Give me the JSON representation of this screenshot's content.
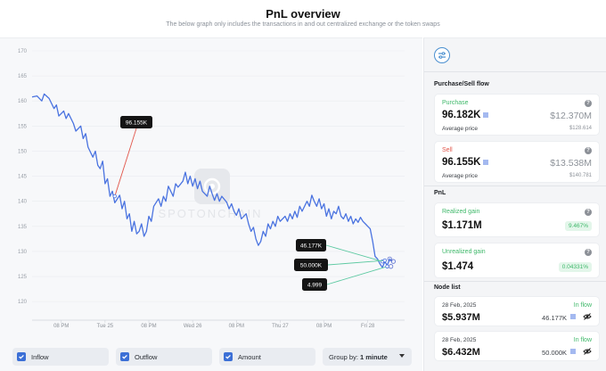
{
  "header": {
    "title": "PnL overview",
    "subtitle": "The below graph only includes the transactions in and out centralized exchange or the token swaps"
  },
  "watermark": "SPOTONCHAIN",
  "chart_data": {
    "type": "line",
    "title": "",
    "xlabel": "",
    "ylabel": "",
    "ylim": [
      117,
      170
    ],
    "yticks": [
      120,
      125,
      130,
      135,
      140,
      145,
      150,
      155,
      160,
      165,
      170
    ],
    "xticks": [
      {
        "t": 0.12,
        "label": "08 PM"
      },
      {
        "t": 0.3,
        "label": "Tue 25"
      },
      {
        "t": 0.48,
        "label": "08 PM"
      },
      {
        "t": 0.66,
        "label": "Wed 26"
      },
      {
        "t": 0.84,
        "label": "08 PM"
      },
      {
        "t": 1.02,
        "label": "Thu 27"
      },
      {
        "t": 1.2,
        "label": "08 PM"
      },
      {
        "t": 1.38,
        "label": "Fri 28"
      }
    ],
    "series": [
      {
        "values": [
          [
            0.0,
            160.8
          ],
          [
            0.02,
            161.0
          ],
          [
            0.04,
            160.0
          ],
          [
            0.05,
            161.4
          ],
          [
            0.07,
            160.5
          ],
          [
            0.09,
            158.5
          ],
          [
            0.1,
            159.2
          ],
          [
            0.11,
            157.0
          ],
          [
            0.13,
            158.0
          ],
          [
            0.14,
            156.5
          ],
          [
            0.15,
            157.5
          ],
          [
            0.17,
            155.5
          ],
          [
            0.18,
            154.0
          ],
          [
            0.2,
            155.0
          ],
          [
            0.21,
            152.5
          ],
          [
            0.22,
            153.5
          ],
          [
            0.23,
            150.8
          ],
          [
            0.25,
            148.8
          ],
          [
            0.26,
            150.0
          ],
          [
            0.27,
            147.2
          ],
          [
            0.28,
            146.5
          ],
          [
            0.29,
            148.0
          ],
          [
            0.3,
            143.5
          ],
          [
            0.31,
            144.5
          ],
          [
            0.32,
            141.0
          ],
          [
            0.33,
            142.0
          ],
          [
            0.34,
            139.7
          ],
          [
            0.36,
            141.2
          ],
          [
            0.37,
            138.5
          ],
          [
            0.38,
            140.0
          ],
          [
            0.39,
            136.5
          ],
          [
            0.4,
            137.5
          ],
          [
            0.41,
            134.0
          ],
          [
            0.42,
            136.0
          ],
          [
            0.43,
            133.5
          ],
          [
            0.44,
            134.0
          ],
          [
            0.45,
            135.5
          ],
          [
            0.46,
            133.0
          ],
          [
            0.47,
            134.0
          ],
          [
            0.48,
            137.0
          ],
          [
            0.49,
            136.0
          ],
          [
            0.5,
            139.0
          ],
          [
            0.52,
            140.5
          ],
          [
            0.53,
            139.0
          ],
          [
            0.54,
            141.0
          ],
          [
            0.55,
            140.0
          ],
          [
            0.56,
            143.0
          ],
          [
            0.57,
            142.0
          ],
          [
            0.58,
            141.0
          ],
          [
            0.59,
            143.5
          ],
          [
            0.6,
            142.8
          ],
          [
            0.62,
            144.0
          ],
          [
            0.63,
            145.8
          ],
          [
            0.64,
            143.5
          ],
          [
            0.65,
            145.0
          ],
          [
            0.66,
            143.0
          ],
          [
            0.67,
            144.5
          ],
          [
            0.68,
            142.5
          ],
          [
            0.69,
            144.0
          ],
          [
            0.7,
            142.0
          ],
          [
            0.72,
            141.0
          ],
          [
            0.73,
            143.0
          ],
          [
            0.74,
            141.5
          ],
          [
            0.75,
            140.2
          ],
          [
            0.76,
            141.5
          ],
          [
            0.77,
            140.0
          ],
          [
            0.78,
            141.0
          ],
          [
            0.8,
            139.8
          ],
          [
            0.81,
            138.5
          ],
          [
            0.82,
            139.5
          ],
          [
            0.83,
            138.0
          ],
          [
            0.84,
            137.2
          ],
          [
            0.85,
            138.5
          ],
          [
            0.86,
            136.5
          ],
          [
            0.88,
            137.5
          ],
          [
            0.89,
            135.5
          ],
          [
            0.9,
            134.0
          ],
          [
            0.91,
            134.8
          ],
          [
            0.92,
            132.5
          ],
          [
            0.93,
            131.2
          ],
          [
            0.94,
            132.0
          ],
          [
            0.95,
            134.0
          ],
          [
            0.96,
            133.0
          ],
          [
            0.97,
            135.5
          ],
          [
            0.98,
            134.5
          ],
          [
            0.99,
            136.0
          ],
          [
            1.0,
            135.0
          ],
          [
            1.01,
            137.0
          ],
          [
            1.02,
            136.0
          ],
          [
            1.04,
            137.0
          ],
          [
            1.05,
            136.0
          ],
          [
            1.06,
            137.5
          ],
          [
            1.07,
            136.5
          ],
          [
            1.08,
            138.0
          ],
          [
            1.09,
            136.8
          ],
          [
            1.1,
            139.0
          ],
          [
            1.11,
            138.0
          ],
          [
            1.13,
            140.0
          ],
          [
            1.14,
            139.0
          ],
          [
            1.15,
            141.2
          ],
          [
            1.16,
            140.0
          ],
          [
            1.17,
            139.0
          ],
          [
            1.18,
            140.5
          ],
          [
            1.19,
            138.5
          ],
          [
            1.2,
            139.5
          ],
          [
            1.21,
            137.0
          ],
          [
            1.22,
            138.5
          ],
          [
            1.23,
            136.5
          ],
          [
            1.24,
            138.0
          ],
          [
            1.25,
            137.5
          ],
          [
            1.26,
            139.0
          ],
          [
            1.27,
            137.0
          ],
          [
            1.28,
            136.5
          ],
          [
            1.29,
            137.5
          ],
          [
            1.3,
            136.0
          ],
          [
            1.31,
            137.0
          ],
          [
            1.32,
            135.5
          ],
          [
            1.33,
            136.5
          ],
          [
            1.34,
            135.8
          ],
          [
            1.35,
            136.8
          ],
          [
            1.36,
            136.0
          ],
          [
            1.37,
            135.5
          ],
          [
            1.38,
            135.0
          ],
          [
            1.39,
            134.5
          ],
          [
            1.4,
            132.0
          ],
          [
            1.41,
            129.0
          ],
          [
            1.42,
            128.5
          ],
          [
            1.43,
            127.5
          ],
          [
            1.44,
            126.8
          ],
          [
            1.45,
            128.0
          ],
          [
            1.46,
            127.2
          ],
          [
            1.47,
            128.5
          ],
          [
            1.48,
            128.0
          ]
        ]
      }
    ],
    "annotations": [
      {
        "label": "96.155K",
        "t": 0.34,
        "y": 141.0,
        "line_color": "#e2574c"
      },
      {
        "label": "46.177K",
        "t": 1.44,
        "y": 128.0,
        "line_color": "#5cc9a1"
      },
      {
        "label": "50.000K",
        "t": 1.45,
        "y": 128.2,
        "line_color": "#5cc9a1"
      },
      {
        "label": "4.999",
        "t": 1.46,
        "y": 127.0,
        "line_color": "#5cc9a1"
      }
    ],
    "line_color": "#4a73e0"
  },
  "controls": {
    "inflow": "Inflow",
    "outflow": "Outflow",
    "amount": "Amount",
    "group_by_label": "Group by:",
    "group_by_value": "1 minute"
  },
  "sidebar": {
    "purchase_sell_title": "Purchase/Sell flow",
    "purchase": {
      "label": "Purchase",
      "amount": "96.182K",
      "usd": "$12.370M",
      "avg_label": "Average price",
      "avg_value": "$128.614"
    },
    "sell": {
      "label": "Sell",
      "amount": "96.155K",
      "usd": "$13.538M",
      "avg_label": "Average price",
      "avg_value": "$140.781"
    },
    "pnl_title": "PnL",
    "realized": {
      "label": "Realized gain",
      "value": "$1.171M",
      "pct": "9.467%"
    },
    "unrealized": {
      "label": "Unrealized gain",
      "value": "$1.474",
      "pct": "0.04331%"
    },
    "node_list_title": "Node list",
    "nodes": [
      {
        "date": "28 Feb, 2025",
        "flow": "In flow",
        "usd": "$5.937M",
        "amount": "46.177K"
      },
      {
        "date": "28 Feb, 2025",
        "flow": "In flow",
        "usd": "$6.432M",
        "amount": "50.000K"
      }
    ]
  }
}
